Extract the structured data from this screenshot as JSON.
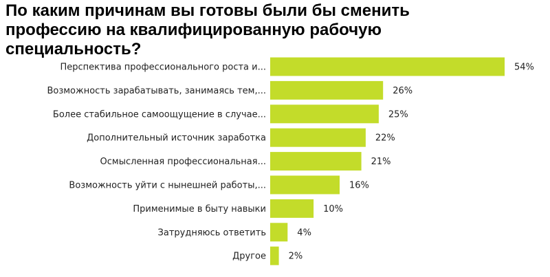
{
  "chart_data": {
    "type": "bar",
    "orientation": "horizontal",
    "title": "По каким причинам вы готовы были бы сменить профессию на квалифицированную рабочую специальность?",
    "categories": [
      "Перспектива профессионального роста и...",
      "Возможность зарабатывать, занимаясь тем,...",
      "Более стабильное самоощущение в случае...",
      "Дополнительный источник заработка",
      "Осмысленная профессиональная...",
      "Возможность уйти с нынешней работы,...",
      "Применимые в быту навыки",
      "Затрудняюсь ответить",
      "Другое"
    ],
    "values": [
      54,
      26,
      25,
      22,
      21,
      16,
      10,
      4,
      2
    ],
    "value_labels": [
      "54%",
      "26%",
      "25%",
      "22%",
      "21%",
      "16%",
      "10%",
      "4%",
      "2%"
    ],
    "unit": "%",
    "bar_color": "#c3dc2a",
    "xlim": [
      0,
      54
    ],
    "grid": false,
    "legend": "none"
  }
}
